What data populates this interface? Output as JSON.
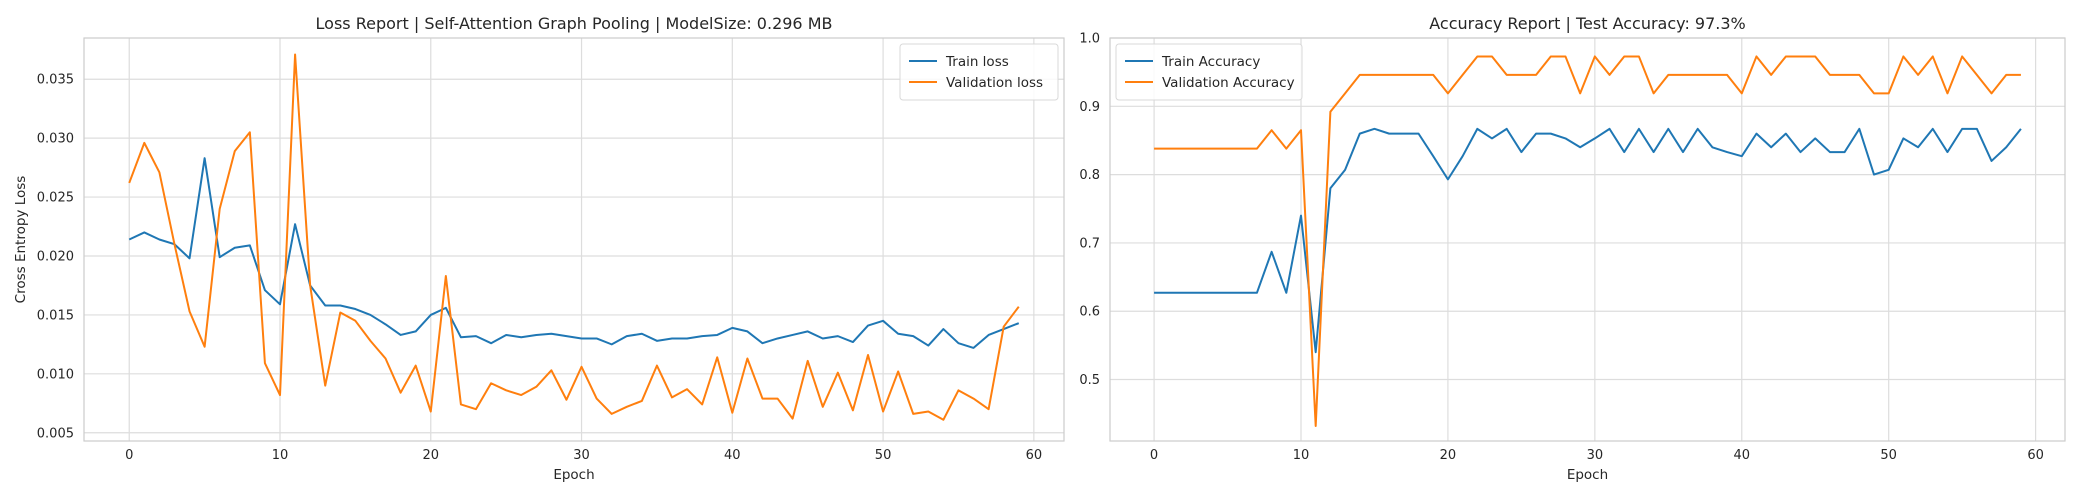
{
  "chart_data": [
    {
      "type": "line",
      "title": "Loss Report | Self-Attention Graph Pooling | ModelSize: 0.296 MB",
      "xlabel": "Epoch",
      "ylabel": "Cross Entropy Loss",
      "xlim": [
        -3,
        62
      ],
      "ylim": [
        0.0043,
        0.0385
      ],
      "xticks": [
        0,
        10,
        20,
        30,
        40,
        50,
        60
      ],
      "yticks": [
        0.005,
        0.01,
        0.015,
        0.02,
        0.025,
        0.03,
        0.035
      ],
      "ytick_labels": [
        "0.005",
        "0.010",
        "0.015",
        "0.020",
        "0.025",
        "0.030",
        "0.035"
      ],
      "grid": true,
      "legend_position": "top-right",
      "series": [
        {
          "name": "Train loss",
          "color": "#1f77b4",
          "values": [
            0.0214,
            0.022,
            0.0214,
            0.021,
            0.0198,
            0.0283,
            0.0199,
            0.0207,
            0.0209,
            0.0171,
            0.0159,
            0.0227,
            0.0175,
            0.0158,
            0.0158,
            0.0155,
            0.015,
            0.0142,
            0.0133,
            0.0136,
            0.015,
            0.0156,
            0.0131,
            0.0132,
            0.0126,
            0.0133,
            0.0131,
            0.0133,
            0.0134,
            0.0132,
            0.013,
            0.013,
            0.0125,
            0.0132,
            0.0134,
            0.0128,
            0.013,
            0.013,
            0.0132,
            0.0133,
            0.0139,
            0.0136,
            0.0126,
            0.013,
            0.0133,
            0.0136,
            0.013,
            0.0132,
            0.0127,
            0.0141,
            0.0145,
            0.0134,
            0.0132,
            0.0124,
            0.0138,
            0.0126,
            0.0122,
            0.0133,
            0.0138,
            0.0143
          ]
        },
        {
          "name": "Validation loss",
          "color": "#ff7f0e",
          "values": [
            0.0262,
            0.0296,
            0.0271,
            0.021,
            0.0153,
            0.0123,
            0.024,
            0.0289,
            0.0305,
            0.0109,
            0.0082,
            0.0371,
            0.0175,
            0.009,
            0.0152,
            0.0145,
            0.0128,
            0.0113,
            0.0084,
            0.0107,
            0.0068,
            0.0183,
            0.0074,
            0.007,
            0.0092,
            0.0086,
            0.0082,
            0.0089,
            0.0103,
            0.0078,
            0.0106,
            0.0079,
            0.0066,
            0.0072,
            0.0077,
            0.0107,
            0.008,
            0.0087,
            0.0074,
            0.0114,
            0.0067,
            0.0113,
            0.0079,
            0.0079,
            0.0062,
            0.0111,
            0.0072,
            0.0101,
            0.0069,
            0.0116,
            0.0068,
            0.0102,
            0.0066,
            0.0068,
            0.0061,
            0.0086,
            0.0079,
            0.007,
            0.014,
            0.0157
          ]
        }
      ]
    },
    {
      "type": "line",
      "title": "Accuracy Report | Test Accuracy: 97.3%",
      "xlabel": "Epoch",
      "ylabel": "",
      "xlim": [
        -3,
        62
      ],
      "ylim": [
        0.41,
        1.0
      ],
      "xticks": [
        0,
        10,
        20,
        30,
        40,
        50,
        60
      ],
      "yticks": [
        0.5,
        0.6,
        0.7,
        0.8,
        0.9,
        1.0
      ],
      "ytick_labels": [
        "0.5",
        "0.6",
        "0.7",
        "0.8",
        "0.9",
        "1.0"
      ],
      "grid": true,
      "legend_position": "top-left",
      "series": [
        {
          "name": "Train Accuracy",
          "color": "#1f77b4",
          "values": [
            0.627,
            0.627,
            0.627,
            0.627,
            0.627,
            0.627,
            0.627,
            0.627,
            0.687,
            0.627,
            0.74,
            0.54,
            0.78,
            0.807,
            0.86,
            0.867,
            0.86,
            0.86,
            0.86,
            0.827,
            0.793,
            0.827,
            0.867,
            0.853,
            0.867,
            0.833,
            0.86,
            0.86,
            0.853,
            0.84,
            0.853,
            0.867,
            0.833,
            0.867,
            0.833,
            0.867,
            0.833,
            0.867,
            0.84,
            0.833,
            0.827,
            0.86,
            0.84,
            0.86,
            0.833,
            0.853,
            0.833,
            0.833,
            0.867,
            0.8,
            0.807,
            0.853,
            0.84,
            0.867,
            0.833,
            0.867,
            0.867,
            0.82,
            0.84,
            0.867
          ]
        },
        {
          "name": "Validation Accuracy",
          "color": "#ff7f0e",
          "values": [
            0.838,
            0.838,
            0.838,
            0.838,
            0.838,
            0.838,
            0.838,
            0.838,
            0.865,
            0.838,
            0.865,
            0.432,
            0.892,
            0.919,
            0.946,
            0.946,
            0.946,
            0.946,
            0.946,
            0.946,
            0.919,
            0.946,
            0.973,
            0.973,
            0.946,
            0.946,
            0.946,
            0.973,
            0.973,
            0.919,
            0.973,
            0.946,
            0.973,
            0.973,
            0.919,
            0.946,
            0.946,
            0.946,
            0.946,
            0.946,
            0.919,
            0.973,
            0.946,
            0.973,
            0.973,
            0.973,
            0.946,
            0.946,
            0.946,
            0.919,
            0.919,
            0.973,
            0.946,
            0.973,
            0.919,
            0.973,
            0.946,
            0.919,
            0.946,
            0.946
          ]
        }
      ]
    }
  ]
}
